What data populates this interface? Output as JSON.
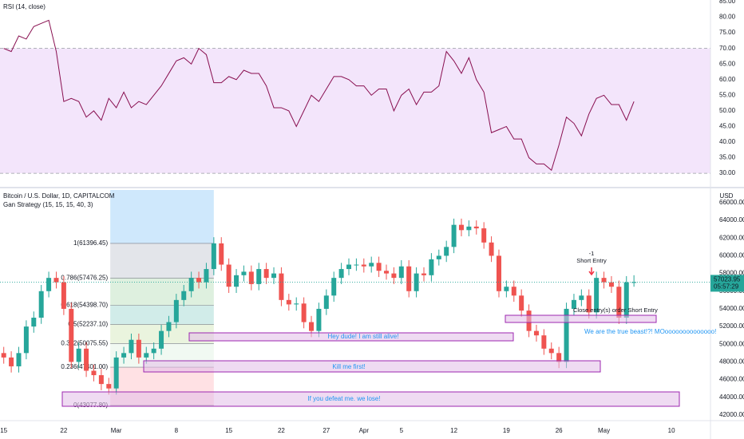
{
  "header": {
    "rsi_title": "RSI (14, close)",
    "symbol": "Bitcoin / U.S. Dollar, 1D, CAPITALCOM",
    "strategy": "Gan Strategy (15, 15, 15, 40, 3)",
    "currency": "USD",
    "timer": "05:57:29"
  },
  "annotations": {
    "count": "-1",
    "short_entry": "Short Entry",
    "close_entry": "Close entry(s) order Short Entry",
    "beast": "We are the true beast!?! MOoooooooooooooo!",
    "alive": "Hey dude! I am still alive!",
    "kill": "Kill me first!",
    "defeat": "If you defeat me. we lose!"
  },
  "xaxis": {
    "xlim": [
      -0.5,
      94.2
    ],
    "xticks": [
      {
        "value": 0,
        "label": "15"
      },
      {
        "value": 8,
        "label": "22"
      },
      {
        "value": 15,
        "label": "Mar"
      },
      {
        "value": 23,
        "label": "8"
      },
      {
        "value": 30,
        "label": "15"
      },
      {
        "value": 37,
        "label": "22"
      },
      {
        "value": 43,
        "label": "27"
      },
      {
        "value": 48,
        "label": "Apr"
      },
      {
        "value": 53,
        "label": "5"
      },
      {
        "value": 60,
        "label": "12"
      },
      {
        "value": 67,
        "label": "19"
      },
      {
        "value": 74,
        "label": "26"
      },
      {
        "value": 80,
        "label": "May"
      },
      {
        "value": 89,
        "label": "10"
      }
    ]
  },
  "chart_data": [
    {
      "type": "line",
      "color": "#880e4f",
      "band": [
        30,
        70
      ],
      "band_color": "#f3e5fb",
      "ylim": [
        26.2,
        85.5
      ],
      "yticks": [
        {
          "value": 30,
          "label": "30.00"
        },
        {
          "value": 35,
          "label": "35.00"
        },
        {
          "value": 40,
          "label": "40.00"
        },
        {
          "value": 45,
          "label": "45.00"
        },
        {
          "value": 50,
          "label": "50.00"
        },
        {
          "value": 55,
          "label": "55.00"
        },
        {
          "value": 60,
          "label": "60.00"
        },
        {
          "value": 65,
          "label": "65.00"
        },
        {
          "value": 70,
          "label": "70.00"
        },
        {
          "value": 75,
          "label": "75.00"
        },
        {
          "value": 80,
          "label": "80.00"
        },
        {
          "value": 85,
          "label": "85.00"
        }
      ],
      "values": [
        70,
        69,
        74,
        73,
        77,
        78,
        79,
        69,
        53,
        54,
        53,
        48,
        50,
        47,
        54,
        51,
        56,
        51,
        53,
        52,
        55,
        58,
        62,
        66,
        67,
        65,
        70,
        68,
        59,
        59,
        61,
        60,
        63,
        62,
        62,
        58,
        51,
        51,
        50,
        45,
        50,
        55,
        53,
        57,
        61,
        61,
        60,
        58,
        58,
        55,
        57,
        57,
        50,
        55,
        57,
        52,
        56,
        56,
        58,
        69,
        66,
        62,
        67,
        60,
        56,
        43,
        44,
        45,
        41,
        41,
        35,
        33,
        33,
        31,
        39,
        48,
        46,
        42,
        49,
        54,
        55,
        52,
        52,
        47,
        53
      ]
    },
    {
      "type": "candlestick",
      "up_color": "#26a69a",
      "down_color": "#ef5350",
      "ylim": [
        41540,
        67440
      ],
      "yticks": [
        {
          "value": 42000,
          "label": "42000.00"
        },
        {
          "value": 44000,
          "label": "44000.00"
        },
        {
          "value": 46000,
          "label": "46000.00"
        },
        {
          "value": 48000,
          "label": "48000.00"
        },
        {
          "value": 50000,
          "label": "50000.00"
        },
        {
          "value": 52000,
          "label": "52000.00"
        },
        {
          "value": 54000,
          "label": "54000.00"
        },
        {
          "value": 56000,
          "label": "56000.00"
        },
        {
          "value": 58000,
          "label": "58000.00"
        },
        {
          "value": 60000,
          "label": "60000.00"
        },
        {
          "value": 62000,
          "label": "62000.00"
        },
        {
          "value": 64000,
          "label": "64000.00"
        },
        {
          "value": 66000,
          "label": "66000.00"
        }
      ],
      "fib_levels": [
        {
          "value": 61396.45,
          "label": "1(61396.45)"
        },
        {
          "value": 57476.25,
          "label": "0.786(57476.25)"
        },
        {
          "value": 54398.7,
          "label": "0.618(54398.70)"
        },
        {
          "value": 52237.1,
          "label": "0.5(52237.10)"
        },
        {
          "value": 50075.55,
          "label": "0.382(50075.55)"
        },
        {
          "value": 47401.0,
          "label": "0.236(47401.00)"
        },
        {
          "value": 43077.8,
          "label": "0(43077.80)"
        }
      ],
      "open": [
        49000,
        48500,
        47500,
        49000,
        52000,
        53000,
        56000,
        57500,
        57000,
        54000,
        48000,
        49500,
        47000,
        46500,
        45500,
        45000,
        48500,
        49000,
        50500,
        48500,
        49000,
        49500,
        51500,
        52500,
        55000,
        56000,
        57500,
        57000,
        58500,
        61400,
        59000,
        56500,
        57800,
        58200,
        56800,
        58500,
        57500,
        58000,
        55000,
        54500,
        54600,
        52500,
        51500,
        54000,
        55500,
        57500,
        58500,
        59000,
        59000,
        58800,
        59200,
        58300,
        58000,
        57500,
        58800,
        56000,
        58000,
        57800,
        59600,
        60000,
        61000,
        63500,
        62900,
        63300,
        63100,
        61500,
        60000,
        56000,
        56500,
        55500,
        53800,
        51500,
        51000,
        49500,
        49000,
        48000,
        54000,
        55000,
        55500,
        53600,
        57500,
        57000,
        56500,
        53000,
        57000
      ],
      "high": [
        49700,
        49200,
        49700,
        52700,
        53700,
        56700,
        58200,
        58200,
        57700,
        54700,
        50200,
        50200,
        47700,
        47200,
        46200,
        49200,
        49700,
        51200,
        51200,
        49700,
        50200,
        52200,
        53200,
        55700,
        56700,
        58200,
        58200,
        59200,
        62100,
        62100,
        59700,
        58500,
        58900,
        58900,
        59200,
        59200,
        58700,
        58700,
        55700,
        55300,
        55300,
        53200,
        54700,
        56200,
        58200,
        59200,
        59700,
        59700,
        59700,
        59900,
        59900,
        59000,
        58700,
        59500,
        59500,
        58700,
        58700,
        60300,
        60700,
        61700,
        64200,
        64200,
        64000,
        64000,
        63800,
        62200,
        60700,
        57200,
        57200,
        56200,
        54500,
        52200,
        51700,
        50200,
        49700,
        54700,
        55700,
        56200,
        56200,
        58200,
        58200,
        57700,
        57200,
        57700,
        57800
      ],
      "low": [
        47800,
        46800,
        46800,
        48300,
        51300,
        52300,
        55300,
        56300,
        53300,
        47300,
        47300,
        46300,
        45800,
        44800,
        44300,
        44300,
        47800,
        48300,
        47800,
        47800,
        48300,
        48800,
        50800,
        51800,
        54300,
        55300,
        56300,
        56300,
        57800,
        58300,
        55800,
        55800,
        57100,
        56100,
        56100,
        56800,
        56800,
        54300,
        53800,
        53800,
        51800,
        50800,
        50800,
        53300,
        54800,
        56800,
        57800,
        58300,
        58100,
        58100,
        57600,
        57300,
        56800,
        56800,
        55300,
        55300,
        57100,
        57100,
        58900,
        59300,
        60300,
        62200,
        62200,
        62400,
        60800,
        59300,
        55300,
        55300,
        54800,
        53100,
        50800,
        50300,
        48800,
        48300,
        47300,
        47300,
        53300,
        54300,
        52900,
        52900,
        56300,
        55800,
        52300,
        52300,
        56500
      ],
      "close": [
        48500,
        47500,
        49000,
        52000,
        53000,
        56000,
        57500,
        57000,
        54000,
        48000,
        49500,
        47000,
        46500,
        45500,
        45000,
        48500,
        49000,
        50500,
        48500,
        49000,
        49500,
        51500,
        52500,
        55000,
        56000,
        57500,
        57000,
        58500,
        61400,
        59000,
        56500,
        57800,
        58200,
        56800,
        58500,
        57500,
        58000,
        55000,
        54500,
        54600,
        52500,
        51500,
        54000,
        55500,
        57500,
        58500,
        59000,
        59000,
        58800,
        59200,
        58300,
        58000,
        57500,
        58800,
        56000,
        58000,
        57800,
        59600,
        60000,
        61000,
        63500,
        62900,
        63300,
        63100,
        61500,
        60000,
        56000,
        56500,
        55500,
        53800,
        51500,
        51000,
        49500,
        49000,
        48000,
        54000,
        55000,
        55500,
        53600,
        57500,
        57000,
        56500,
        53000,
        57000,
        57023.95
      ]
    }
  ]
}
